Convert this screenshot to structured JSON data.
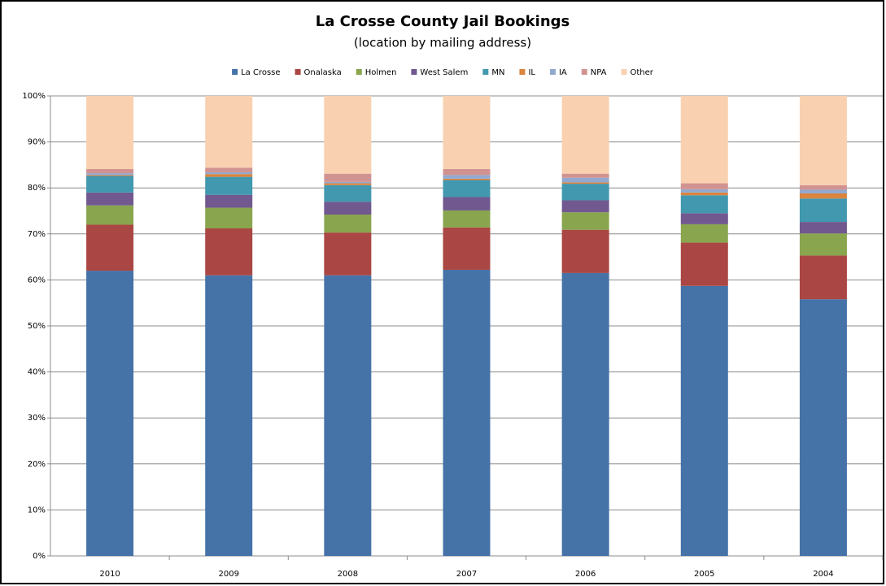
{
  "chart_data": {
    "type": "stacked_bar",
    "title": "La Crosse County Jail Bookings",
    "subtitle": "(location by mailing address)",
    "categories": [
      "2010",
      "2009",
      "2008",
      "2007",
      "2006",
      "2005",
      "2004"
    ],
    "series": [
      {
        "name": "La Crosse",
        "color": "#4572a7",
        "values": [
          62,
          61,
          61,
          62.2,
          61.5,
          58.7,
          55.8
        ]
      },
      {
        "name": "Onalaska",
        "color": "#aa4643",
        "values": [
          10,
          10.2,
          9.3,
          9.2,
          9.4,
          9.4,
          9.5
        ]
      },
      {
        "name": "Holmen",
        "color": "#89a54e",
        "values": [
          4.2,
          4.5,
          3.9,
          3.7,
          3.8,
          4.0,
          4.8
        ]
      },
      {
        "name": "West Salem",
        "color": "#71588f",
        "values": [
          2.8,
          2.8,
          2.8,
          2.9,
          2.6,
          2.4,
          2.5
        ]
      },
      {
        "name": "MN",
        "color": "#4198af",
        "values": [
          3.6,
          3.9,
          3.6,
          3.7,
          3.6,
          3.9,
          5.1
        ]
      },
      {
        "name": "IL",
        "color": "#db843d",
        "values": [
          0.2,
          0.6,
          0.4,
          0.3,
          0.3,
          0.6,
          1.1
        ]
      },
      {
        "name": "IA",
        "color": "#93a9cf",
        "values": [
          0.4,
          0.4,
          0.3,
          0.8,
          1.0,
          0.7,
          0.8
        ]
      },
      {
        "name": "NPA",
        "color": "#d19392",
        "values": [
          0.9,
          1.0,
          1.8,
          1.3,
          0.9,
          1.3,
          1.0
        ]
      },
      {
        "name": "Other",
        "color": "#f9d1b0",
        "values": [
          15.9,
          15.6,
          16.9,
          15.9,
          16.9,
          19.0,
          19.4
        ]
      }
    ],
    "ylim": [
      0,
      100
    ],
    "yticks": [
      {
        "value": 0,
        "label": "0%"
      },
      {
        "value": 10,
        "label": "10%"
      },
      {
        "value": 20,
        "label": "20%"
      },
      {
        "value": 30,
        "label": "30%"
      },
      {
        "value": 40,
        "label": "40%"
      },
      {
        "value": 50,
        "label": "50%"
      },
      {
        "value": 60,
        "label": "60%"
      },
      {
        "value": 70,
        "label": "70%"
      },
      {
        "value": 80,
        "label": "80%"
      },
      {
        "value": 90,
        "label": "90%"
      },
      {
        "value": 100,
        "label": "100%"
      }
    ],
    "grid": true,
    "legend": "top"
  }
}
